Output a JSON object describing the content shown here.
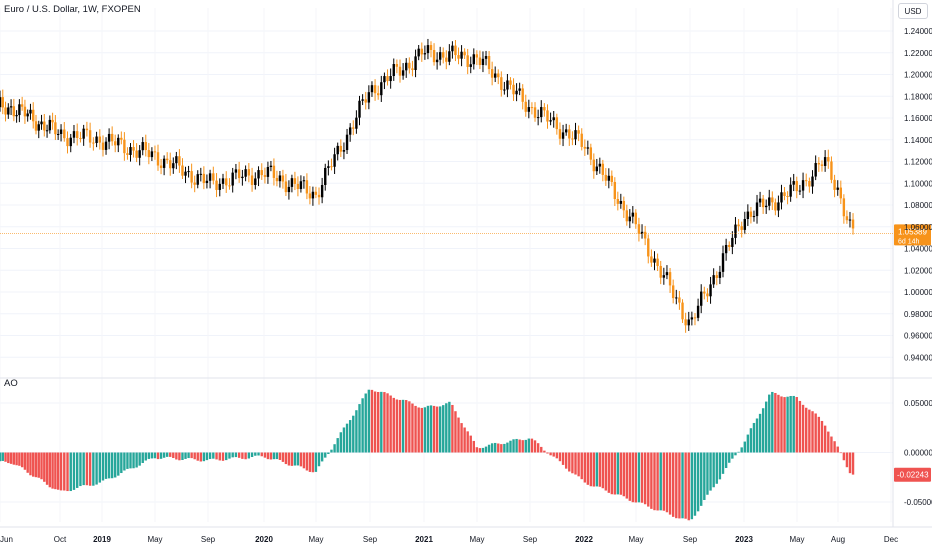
{
  "header": {
    "symbol_title": "Euro / U.S. Dollar, 1W, FXOPEN",
    "currency_button": "USD"
  },
  "indicator": {
    "name": "AO"
  },
  "colors": {
    "up_candle": "#000000",
    "down_candle": "#f7931a",
    "ao_rising": "#26a69a",
    "ao_falling": "#ef5350",
    "price_label_bg": "#f7931a",
    "ao_label_bg": "#ef5350",
    "grid": "#f0f3fa",
    "axis_text": "#131722"
  },
  "price_axis": {
    "ticks": [
      "1.24000",
      "1.22000",
      "1.20000",
      "1.18000",
      "1.16000",
      "1.14000",
      "1.12000",
      "1.10000",
      "1.08000",
      "1.06000",
      "1.04000",
      "1.02000",
      "1.00000",
      "0.98000",
      "0.96000",
      "0.94000"
    ],
    "current_price": "1.05389",
    "countdown": "6d 14h"
  },
  "ao_axis": {
    "ticks": [
      "0.05000",
      "0.00000",
      "-0.05000"
    ],
    "current_value": "-0.02243"
  },
  "time_axis": {
    "labels": [
      "Jun",
      "Oct",
      "2019",
      "May",
      "Sep",
      "2020",
      "May",
      "Sep",
      "2021",
      "May",
      "Sep",
      "2022",
      "May",
      "Sep",
      "2023",
      "May",
      "Aug",
      "Dec"
    ],
    "bold": [
      "2019",
      "2020",
      "2021",
      "2022",
      "2023"
    ]
  },
  "chart_data": [
    {
      "type": "candlestick",
      "title": "Euro / U.S. Dollar, 1W, FXOPEN",
      "x": [
        "2018-06",
        "2018-10",
        "2019-01",
        "2019-05",
        "2019-09",
        "2020-01",
        "2020-05",
        "2020-09",
        "2021-01",
        "2021-05",
        "2021-09",
        "2022-01",
        "2022-05",
        "2022-09",
        "2023-01",
        "2023-05",
        "2023-07",
        "2023-08",
        "2023-09"
      ],
      "y": [
        1.17,
        1.145,
        1.14,
        1.125,
        1.1,
        1.11,
        1.09,
        1.185,
        1.22,
        1.215,
        1.17,
        1.135,
        1.06,
        0.97,
        1.07,
        1.095,
        1.12,
        1.095,
        1.054
      ],
      "ylim": [
        0.935,
        1.245
      ],
      "last_close": 1.05389
    },
    {
      "type": "bar",
      "title": "AO",
      "x": [
        "2018-06",
        "2018-10",
        "2019-01",
        "2019-05",
        "2019-09",
        "2020-01",
        "2020-05",
        "2020-09",
        "2021-01",
        "2021-03",
        "2021-05",
        "2021-09",
        "2022-01",
        "2022-05",
        "2022-09",
        "2023-01",
        "2023-03",
        "2023-05",
        "2023-07",
        "2023-09"
      ],
      "values": [
        -0.01,
        -0.04,
        -0.03,
        -0.005,
        -0.008,
        -0.004,
        -0.02,
        0.065,
        0.045,
        0.05,
        0.005,
        0.015,
        -0.03,
        -0.05,
        -0.07,
        0.01,
        0.06,
        0.055,
        0.03,
        -0.022
      ],
      "ylim": [
        -0.075,
        0.075
      ],
      "last_value": -0.02243
    }
  ]
}
